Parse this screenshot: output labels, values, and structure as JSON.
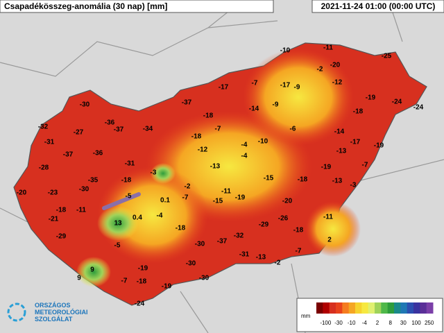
{
  "header": {
    "title": "Csapadékösszeg-anomália (30 nap) [mm]",
    "timestamp": "2021-11-24 01:00 (00:00 UTC)"
  },
  "stations": [
    -10,
    -11,
    -25,
    -2,
    -20,
    -17,
    -7,
    -17,
    -9,
    -12,
    -19,
    -24,
    -24,
    -37,
    -14,
    -9,
    -18,
    -30,
    -18,
    -36,
    -37,
    -34,
    -7,
    -6,
    -14,
    -32,
    -27,
    -18,
    -4,
    -10,
    -17,
    -19,
    -31,
    -37,
    -36,
    -12,
    -4,
    -13,
    -28,
    -31,
    -3,
    -13,
    -19,
    -7,
    -35,
    -18,
    -2,
    -15,
    -18,
    -13,
    -3,
    -20,
    -23,
    -30,
    -5,
    -11,
    -19,
    0.1,
    -7,
    -15,
    -20,
    -18,
    -11,
    -4,
    0.4,
    -21,
    13,
    -29,
    -26,
    -11,
    -18,
    -18,
    -29,
    -32,
    -37,
    -30,
    -5,
    2,
    -7,
    -31,
    -13,
    -30,
    -2,
    9,
    -19,
    9,
    -30,
    -7,
    -18,
    -19,
    -24
  ],
  "legend": {
    "unit": "mm",
    "ticks": [
      -100,
      -30,
      -10,
      -4,
      2,
      8,
      30,
      100,
      250
    ]
  },
  "logo": {
    "lines": [
      "ORSZÁGOS",
      "METEOROLÓGIAI",
      "SZOLGÁLAT"
    ]
  }
}
